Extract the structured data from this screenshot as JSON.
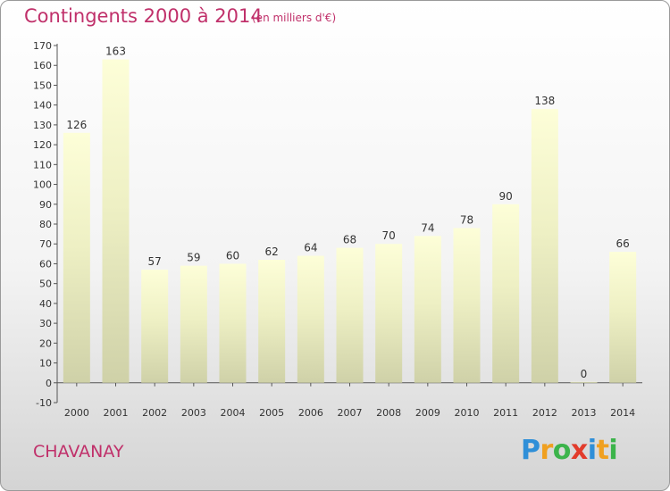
{
  "header": {
    "title": "Contingents 2000 à 2014",
    "subtitle": "(en milliers d'€)"
  },
  "footer": {
    "commune": "CHAVANAY"
  },
  "logo": {
    "text": "Proxiti",
    "letters": [
      {
        "ch": "P",
        "color": "#2f8fd8"
      },
      {
        "ch": "r",
        "color": "#f0a020"
      },
      {
        "ch": "o",
        "color": "#3cb44b"
      },
      {
        "ch": "x",
        "color": "#e23c2c"
      },
      {
        "ch": "i",
        "color": "#2f8fd8"
      },
      {
        "ch": "t",
        "color": "#f0a020"
      },
      {
        "ch": "i",
        "color": "#3cb44b"
      }
    ]
  },
  "chart_data": {
    "type": "bar",
    "title": "Contingents 2000 à 2014",
    "subtitle": "(en milliers d'€)",
    "categories": [
      "2000",
      "2001",
      "2002",
      "2003",
      "2004",
      "2005",
      "2006",
      "2007",
      "2008",
      "2009",
      "2010",
      "2011",
      "2012",
      "2013",
      "2014"
    ],
    "values": [
      126,
      163,
      57,
      59,
      60,
      62,
      64,
      68,
      70,
      74,
      78,
      90,
      138,
      0,
      66
    ],
    "data_labels": [
      "126",
      "163",
      "57",
      "59",
      "60",
      "62",
      "64",
      "68",
      "70",
      "74",
      "78",
      "90",
      "138",
      "0",
      "66"
    ],
    "yticks": [
      -10,
      0,
      10,
      20,
      30,
      40,
      50,
      60,
      70,
      80,
      90,
      100,
      110,
      120,
      130,
      140,
      150,
      160,
      170
    ],
    "ylim": [
      -10,
      170
    ],
    "xlabel": "",
    "ylabel": "",
    "grid": false,
    "legend": "none"
  }
}
